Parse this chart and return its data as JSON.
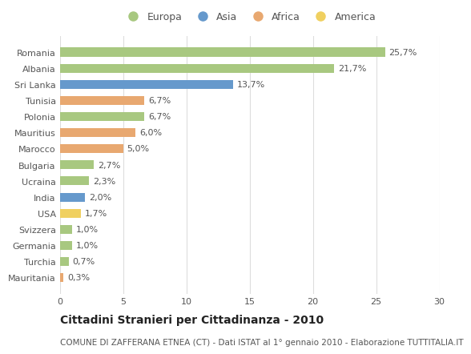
{
  "categories": [
    "Mauritania",
    "Turchia",
    "Germania",
    "Svizzera",
    "USA",
    "India",
    "Ucraina",
    "Bulgaria",
    "Marocco",
    "Mauritius",
    "Polonia",
    "Tunisia",
    "Sri Lanka",
    "Albania",
    "Romania"
  ],
  "values": [
    0.3,
    0.7,
    1.0,
    1.0,
    1.7,
    2.0,
    2.3,
    2.7,
    5.0,
    6.0,
    6.7,
    6.7,
    13.7,
    21.7,
    25.7
  ],
  "labels": [
    "0,3%",
    "0,7%",
    "1,0%",
    "1,0%",
    "1,7%",
    "2,0%",
    "2,3%",
    "2,7%",
    "5,0%",
    "6,0%",
    "6,7%",
    "6,7%",
    "13,7%",
    "21,7%",
    "25,7%"
  ],
  "continents": [
    "Africa",
    "Europa",
    "Europa",
    "Europa",
    "America",
    "Asia",
    "Europa",
    "Europa",
    "Africa",
    "Africa",
    "Europa",
    "Africa",
    "Asia",
    "Europa",
    "Europa"
  ],
  "continent_colors": {
    "Europa": "#a8c880",
    "Asia": "#6699cc",
    "Africa": "#e8a870",
    "America": "#f0d060"
  },
  "legend_labels": [
    "Europa",
    "Asia",
    "Africa",
    "America"
  ],
  "legend_colors": [
    "#a8c880",
    "#6699cc",
    "#e8a870",
    "#f0d060"
  ],
  "title": "Cittadini Stranieri per Cittadinanza - 2010",
  "subtitle": "COMUNE DI ZAFFERANA ETNEA (CT) - Dati ISTAT al 1° gennaio 2010 - Elaborazione TUTTITALIA.IT",
  "xlim": [
    0,
    30
  ],
  "xticks": [
    0,
    5,
    10,
    15,
    20,
    25,
    30
  ],
  "background_color": "#ffffff",
  "grid_color": "#dddddd",
  "bar_height": 0.55,
  "title_fontsize": 10,
  "subtitle_fontsize": 7.5,
  "label_fontsize": 8,
  "tick_fontsize": 8,
  "legend_fontsize": 9
}
